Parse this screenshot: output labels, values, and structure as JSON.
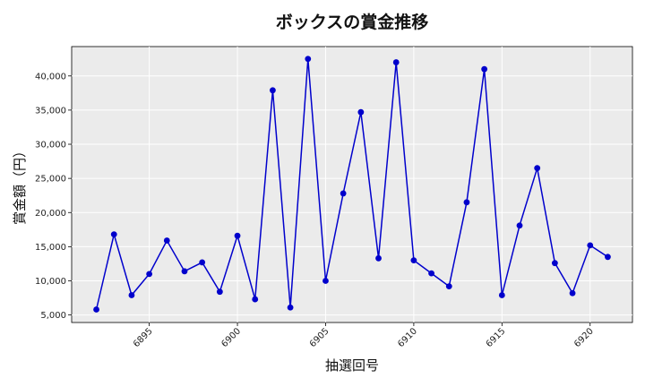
{
  "chart_data": {
    "type": "line",
    "title": "ボックスの賞金推移",
    "xlabel": "抽選回号",
    "ylabel": "賞金額（円）",
    "xlim": [
      6890.6,
      6922.4
    ],
    "ylim": [
      3900,
      44300
    ],
    "x_ticks": [
      6895,
      6900,
      6905,
      6910,
      6915,
      6920
    ],
    "y_ticks": [
      5000,
      10000,
      15000,
      20000,
      25000,
      30000,
      35000,
      40000
    ],
    "y_tick_labels": [
      "5,000",
      "10,000",
      "15,000",
      "20,000",
      "25,000",
      "30,000",
      "35,000",
      "40,000"
    ],
    "grid": true,
    "legend": "none",
    "series": [
      {
        "color": "#0000cc",
        "x": [
          6892,
          6893,
          6894,
          6895,
          6896,
          6897,
          6898,
          6899,
          6900,
          6901,
          6902,
          6903,
          6904,
          6905,
          6906,
          6907,
          6908,
          6909,
          6910,
          6911,
          6912,
          6913,
          6914,
          6915,
          6916,
          6917,
          6918,
          6919,
          6920,
          6921
        ],
        "y": [
          5800,
          16800,
          7900,
          11000,
          15900,
          11400,
          12700,
          8400,
          16600,
          7300,
          37900,
          6100,
          42500,
          10000,
          22800,
          34700,
          13300,
          42000,
          13000,
          11100,
          9200,
          21500,
          41000,
          7900,
          18100,
          26500,
          12600,
          8200,
          15200,
          13500
        ]
      }
    ]
  }
}
